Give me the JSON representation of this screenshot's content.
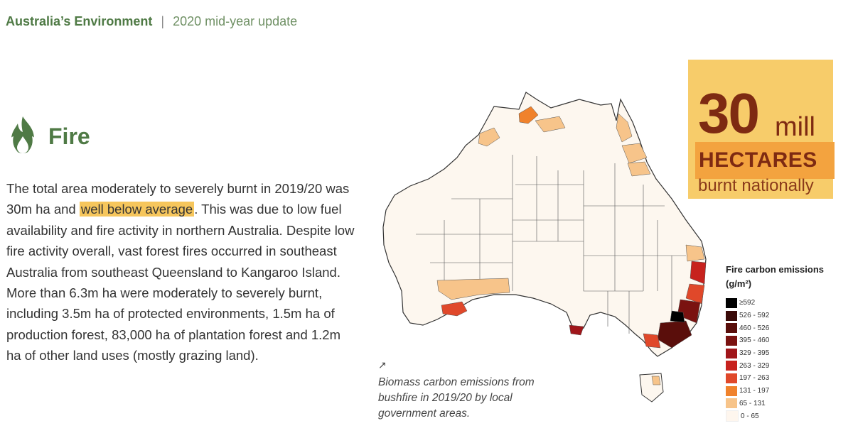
{
  "header": {
    "brand": "Australia’s Environment",
    "separator": "|",
    "subtitle": "2020 mid-year update"
  },
  "section": {
    "icon": "flame-icon",
    "title": "Fire"
  },
  "body": {
    "before_highlight": "The total area moderately to severely burnt in 2019/20 was 30m ha and ",
    "highlight": "well below average",
    "after_highlight": ". This was due to low fuel availability and fire activity in northern Australia. Despite low fire activity overall, vast forest fires occurred in southeast Australia from southeast Queensland to Kangaroo Island. More than 6.3m ha were moderately to severely burnt, including 3.5m ha of protected environments, 1.5m ha of production forest, 83,000 ha of plantation forest and 1.2m ha of other land uses (mostly grazing land)."
  },
  "callout": {
    "number": "30",
    "unit": "mill",
    "label": "HECTARES",
    "sublabel": "burnt nationally"
  },
  "legend": {
    "title_line1": "Fire carbon emissions",
    "title_line2": "(g/m²)",
    "items": [
      {
        "label": "≥592",
        "color": "#000000"
      },
      {
        "label": "526 - 592",
        "color": "#3a0a08"
      },
      {
        "label": "460 - 526",
        "color": "#5a0e0b"
      },
      {
        "label": "395 - 460",
        "color": "#7a1210"
      },
      {
        "label": "329 - 395",
        "color": "#a0161a"
      },
      {
        "label": "263 - 329",
        "color": "#c7221e"
      },
      {
        "label": "197 - 263",
        "color": "#e0482a"
      },
      {
        "label": "131 - 197",
        "color": "#f0822c"
      },
      {
        "label": "65 - 131",
        "color": "#f7c48a"
      },
      {
        "label": "0 - 65",
        "color": "#fef6ee"
      }
    ]
  },
  "caption": {
    "arrow": "↗",
    "text": "Biomass carbon emissions from bushfire in 2019/20 by local government areas."
  },
  "colors": {
    "green": "#4f7a45",
    "callout_bg": "#f7cc6a",
    "callout_text": "#7e2a12",
    "highlight": "#f6c65c"
  }
}
